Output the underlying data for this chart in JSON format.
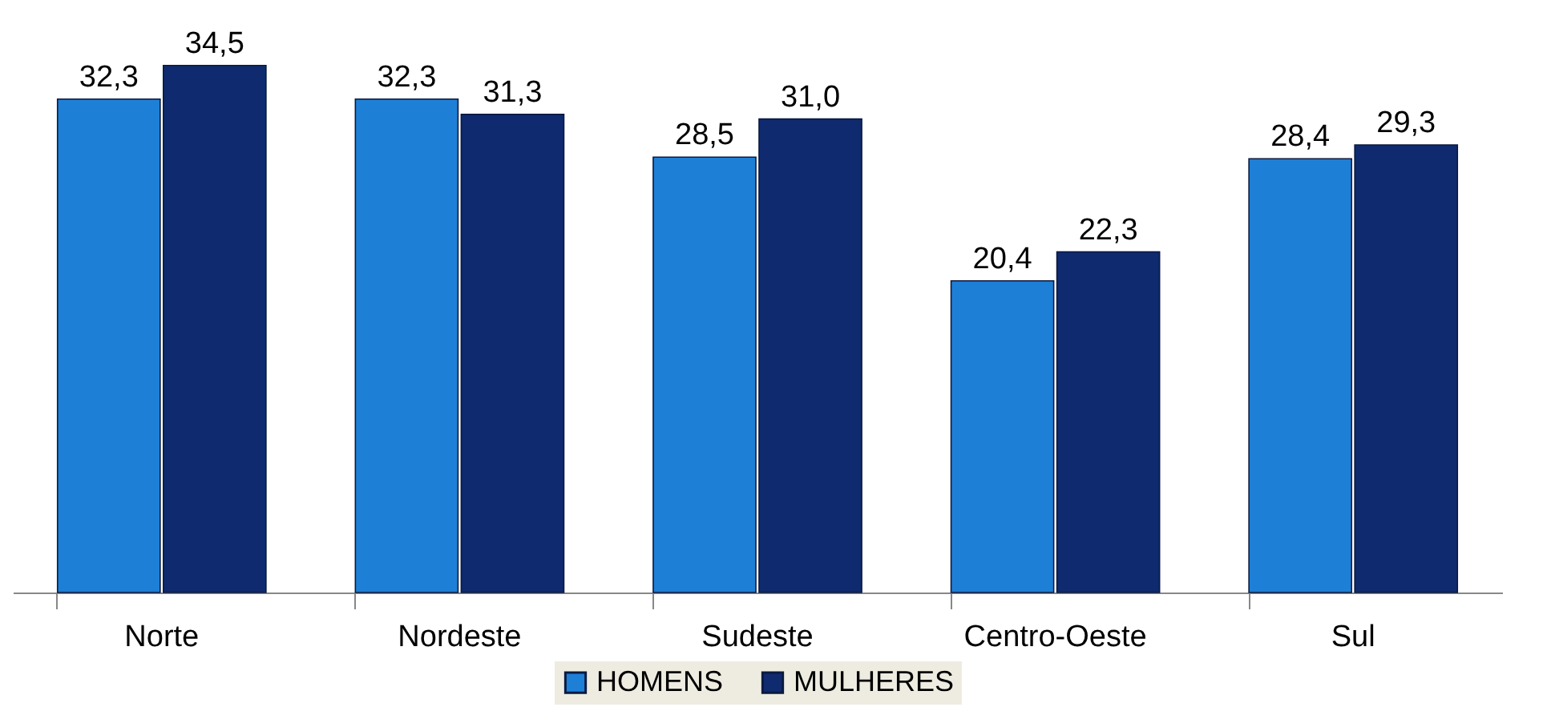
{
  "chart_data": {
    "type": "bar",
    "categories": [
      "Norte",
      "Nordeste",
      "Sudeste",
      "Centro-Oeste",
      "Sul"
    ],
    "series": [
      {
        "name": "HOMENS",
        "color": "#1e7fd6",
        "values": [
          32.3,
          32.3,
          28.5,
          20.4,
          28.4
        ],
        "value_labels": [
          "32,3",
          "32,3",
          "28,5",
          "20,4",
          "28,4"
        ]
      },
      {
        "name": "MULHERES",
        "color": "#0f2a6e",
        "values": [
          34.5,
          31.3,
          31.0,
          22.3,
          29.3
        ],
        "value_labels": [
          "34,5",
          "31,3",
          "31,0",
          "22,3",
          "29,3"
        ]
      }
    ],
    "legend": "bottom"
  }
}
